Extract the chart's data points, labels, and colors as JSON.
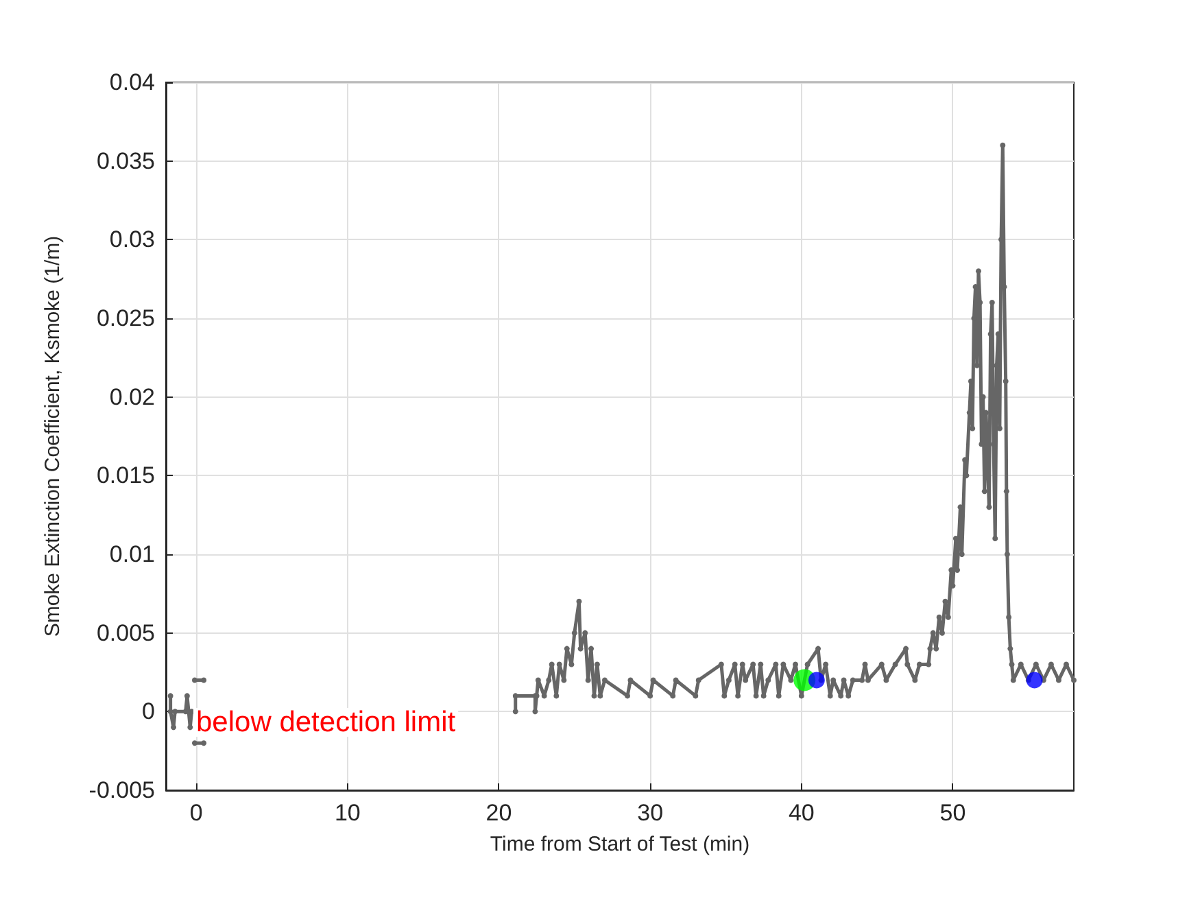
{
  "chart_data": {
    "type": "line",
    "xlabel": "Time from Start of Test (min)",
    "ylabel": "Smoke Extinction Coefficient, Ksmoke (1/m)",
    "xlim": [
      -2,
      58
    ],
    "xticks": [
      0,
      10,
      20,
      30,
      40,
      50
    ],
    "ylim": [
      -0.005,
      0.04
    ],
    "yticks": [
      -0.005,
      0,
      0.005,
      0.01,
      0.015,
      0.02,
      0.025,
      0.03,
      0.035,
      0.04
    ],
    "grid": true,
    "marker": "circle",
    "line_style": "solid",
    "annotations": [
      "below detection limit"
    ],
    "series": [
      {
        "color": "#666666",
        "x": [
          -1.7,
          -1.7,
          -1.5,
          -1.4,
          -0.7,
          -0.6,
          -0.5,
          -0.4,
          -0.3
        ],
        "values": [
          0.001,
          0,
          -0.001,
          0,
          0,
          0.001,
          0,
          -0.001,
          0
        ]
      },
      {
        "color": "#666666",
        "x": [
          -0.1,
          0.5
        ],
        "values": [
          0.002,
          0.002
        ]
      },
      {
        "color": "#666666",
        "x": [
          -0.1,
          0.5
        ],
        "values": [
          -0.002,
          -0.002
        ]
      },
      {
        "color": "#666666",
        "x": [
          21.1,
          21.1,
          22.4,
          22.4,
          22.5,
          22.6,
          23.0,
          23.3,
          23.5,
          23.8,
          24.0,
          24.3,
          24.5,
          24.8,
          25.0,
          25.3,
          25.4,
          25.7,
          25.9,
          26.1,
          26.3,
          26.5,
          26.7,
          27.0,
          28.5,
          28.7,
          30.0,
          30.2,
          31.5,
          31.7,
          33.0,
          33.2,
          34.7,
          34.9,
          35.2,
          35.6,
          35.8,
          36.1,
          36.3,
          36.8,
          37.0,
          37.3,
          37.5,
          37.8,
          38.3,
          38.5,
          38.8,
          39.3,
          39.6,
          40.0,
          40.4,
          41.1,
          41.3,
          41.6,
          41.9,
          42.1,
          42.6,
          42.8,
          43.1,
          43.4,
          44.0,
          44.2,
          44.4,
          45.3,
          45.6,
          46.2,
          46.9,
          47.0,
          47.5,
          47.8,
          48.4,
          48.5,
          48.7,
          48.9,
          49.1,
          49.3,
          49.5,
          49.7,
          49.9,
          50.0,
          50.2,
          50.3,
          50.5,
          50.6,
          50.8,
          50.9,
          51.1,
          51.2,
          51.3,
          51.4,
          51.5,
          51.6,
          51.7,
          51.8,
          51.9,
          52.0,
          52.1,
          52.2,
          52.4,
          52.5,
          52.6,
          52.7,
          52.8,
          52.9,
          53.0,
          53.1,
          53.2,
          53.3,
          53.4,
          53.5,
          53.55,
          53.6,
          53.7,
          53.8,
          53.9,
          54.0,
          54.5,
          55.0,
          55.5,
          56.0,
          56.5,
          57.0,
          57.5,
          58.0
        ],
        "values": [
          0,
          0.001,
          0.001,
          0,
          0.001,
          0.002,
          0.001,
          0.002,
          0.003,
          0.001,
          0.003,
          0.002,
          0.004,
          0.003,
          0.005,
          0.007,
          0.004,
          0.005,
          0.002,
          0.004,
          0.001,
          0.003,
          0.001,
          0.002,
          0.001,
          0.002,
          0.001,
          0.002,
          0.001,
          0.002,
          0.001,
          0.002,
          0.003,
          0.001,
          0.002,
          0.003,
          0.001,
          0.003,
          0.002,
          0.003,
          0.001,
          0.003,
          0.001,
          0.002,
          0.003,
          0.001,
          0.003,
          0.002,
          0.003,
          0.001,
          0.003,
          0.004,
          0.002,
          0.003,
          0.001,
          0.002,
          0.001,
          0.002,
          0.001,
          0.002,
          0.002,
          0.003,
          0.002,
          0.003,
          0.002,
          0.003,
          0.004,
          0.003,
          0.002,
          0.003,
          0.003,
          0.004,
          0.005,
          0.004,
          0.006,
          0.005,
          0.007,
          0.006,
          0.009,
          0.008,
          0.011,
          0.009,
          0.013,
          0.01,
          0.016,
          0.015,
          0.019,
          0.021,
          0.018,
          0.025,
          0.027,
          0.022,
          0.028,
          0.026,
          0.017,
          0.02,
          0.014,
          0.019,
          0.013,
          0.024,
          0.026,
          0.017,
          0.011,
          0.022,
          0.024,
          0.018,
          0.03,
          0.036,
          0.027,
          0.021,
          0.014,
          0.01,
          0.006,
          0.004,
          0.003,
          0.002,
          0.003,
          0.002,
          0.003,
          0.002,
          0.003,
          0.002,
          0.003,
          0.002
        ]
      },
      {
        "type": "scatter",
        "color": "#00ff00",
        "x": [
          40.2
        ],
        "values": [
          0.002
        ]
      },
      {
        "type": "scatter",
        "color": "#0000ff",
        "x": [
          41.0,
          55.4
        ],
        "values": [
          0.002,
          0.002
        ]
      }
    ]
  }
}
